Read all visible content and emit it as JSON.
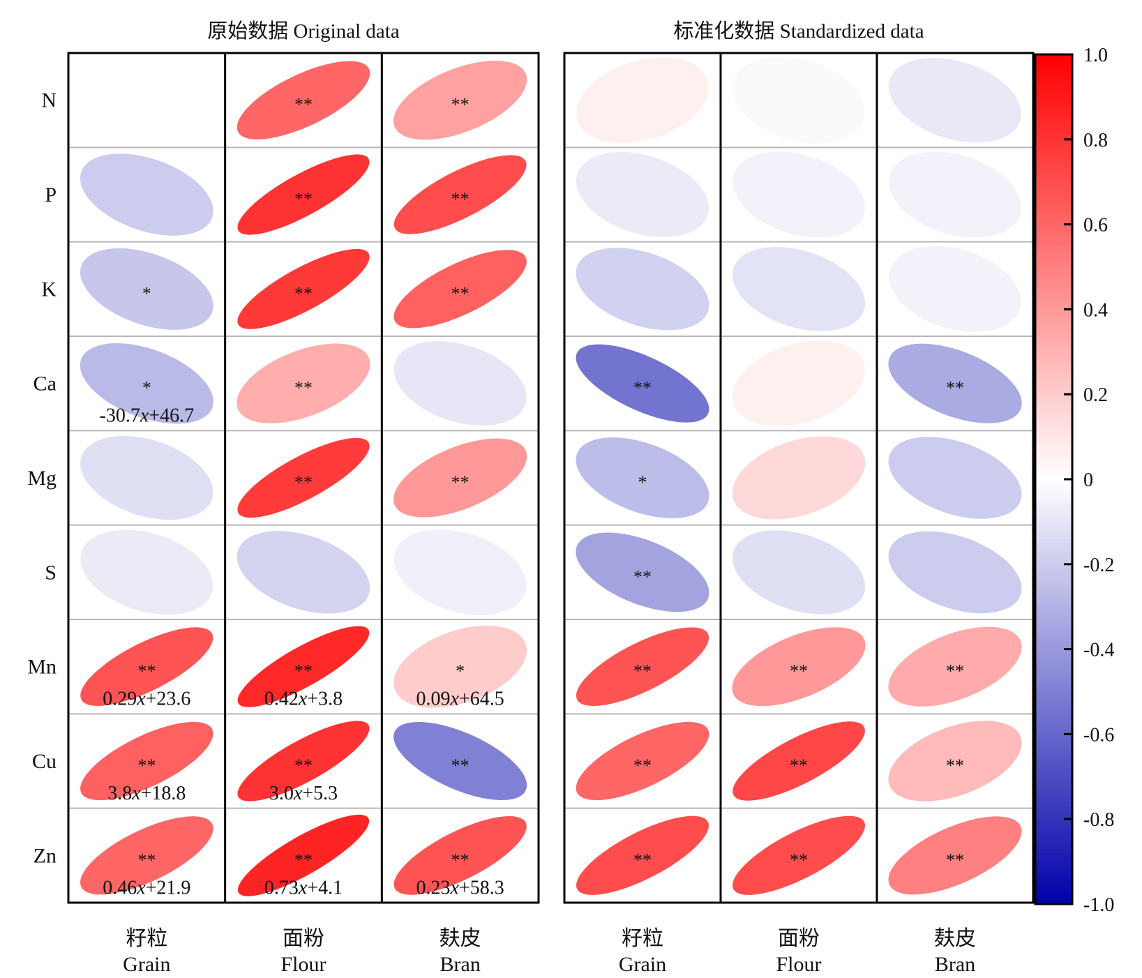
{
  "chart_data": {
    "type": "heatmap",
    "rows": [
      "N",
      "P",
      "K",
      "Ca",
      "Mg",
      "S",
      "Mn",
      "Cu",
      "Zn"
    ],
    "columns": [
      {
        "zh": "籽粒",
        "en": "Grain"
      },
      {
        "zh": "面粉",
        "en": "Flour"
      },
      {
        "zh": "麸皮",
        "en": "Bran"
      }
    ],
    "colorbar": {
      "min": -1.0,
      "max": 1.0,
      "ticks": [
        "1.0",
        "0.8",
        "0.6",
        "0.4",
        "0.2",
        "0",
        "-0.2",
        "-0.4",
        "-0.6",
        "-0.8",
        "-1.0"
      ],
      "colors": {
        "negative": "#0000aa",
        "zero": "#ffffff",
        "positive": "#ff0000"
      }
    },
    "panels": [
      {
        "title": "原始数据  Original data",
        "cells": [
          [
            {
              "r": 0,
              "sig": "",
              "eq": "",
              "eq_var": "",
              "eq_rest": ""
            },
            {
              "r": 0.6,
              "sig": "**",
              "eq": "",
              "eq_var": "",
              "eq_rest": ""
            },
            {
              "r": 0.37,
              "sig": "**",
              "eq": "",
              "eq_var": "",
              "eq_rest": ""
            }
          ],
          [
            {
              "r": -0.2,
              "sig": "",
              "eq": "",
              "eq_var": "",
              "eq_rest": ""
            },
            {
              "r": 0.8,
              "sig": "**",
              "eq": "",
              "eq_var": "",
              "eq_rest": ""
            },
            {
              "r": 0.7,
              "sig": "**",
              "eq": "",
              "eq_var": "",
              "eq_rest": ""
            }
          ],
          [
            {
              "r": -0.22,
              "sig": "*",
              "eq": "",
              "eq_var": "",
              "eq_rest": ""
            },
            {
              "r": 0.78,
              "sig": "**",
              "eq": "",
              "eq_var": "",
              "eq_rest": ""
            },
            {
              "r": 0.62,
              "sig": "**",
              "eq": "",
              "eq_var": "",
              "eq_rest": ""
            }
          ],
          [
            {
              "r": -0.27,
              "sig": "*",
              "eq": "-30.7",
              "eq_var": "x",
              "eq_rest": "+46.7"
            },
            {
              "r": 0.32,
              "sig": "**",
              "eq": "",
              "eq_var": "",
              "eq_rest": ""
            },
            {
              "r": -0.1,
              "sig": "",
              "eq": "",
              "eq_var": "",
              "eq_rest": ""
            }
          ],
          [
            {
              "r": -0.12,
              "sig": "",
              "eq": "",
              "eq_var": "",
              "eq_rest": ""
            },
            {
              "r": 0.77,
              "sig": "**",
              "eq": "",
              "eq_var": "",
              "eq_rest": ""
            },
            {
              "r": 0.4,
              "sig": "**",
              "eq": "",
              "eq_var": "",
              "eq_rest": ""
            }
          ],
          [
            {
              "r": -0.08,
              "sig": "",
              "eq": "",
              "eq_var": "",
              "eq_rest": ""
            },
            {
              "r": -0.17,
              "sig": "",
              "eq": "",
              "eq_var": "",
              "eq_rest": ""
            },
            {
              "r": -0.06,
              "sig": "",
              "eq": "",
              "eq_var": "",
              "eq_rest": ""
            }
          ],
          [
            {
              "r": 0.67,
              "sig": "**",
              "eq": "0.29",
              "eq_var": "x",
              "eq_rest": "+23.6"
            },
            {
              "r": 0.84,
              "sig": "**",
              "eq": "0.42",
              "eq_var": "x",
              "eq_rest": "+3.8"
            },
            {
              "r": 0.2,
              "sig": "*",
              "eq": "0.09",
              "eq_var": "x",
              "eq_rest": "+64.5"
            }
          ],
          [
            {
              "r": 0.62,
              "sig": "**",
              "eq": "3.8",
              "eq_var": "x",
              "eq_rest": "+18.8"
            },
            {
              "r": 0.8,
              "sig": "**",
              "eq": "3.0",
              "eq_var": "x",
              "eq_rest": "+5.3"
            },
            {
              "r": -0.5,
              "sig": "**",
              "eq": "",
              "eq_var": "",
              "eq_rest": ""
            }
          ],
          [
            {
              "r": 0.6,
              "sig": "**",
              "eq": "0.46",
              "eq_var": "x",
              "eq_rest": "+21.9"
            },
            {
              "r": 0.86,
              "sig": "**",
              "eq": "0.73",
              "eq_var": "x",
              "eq_rest": "+4.1"
            },
            {
              "r": 0.67,
              "sig": "**",
              "eq": "0.23",
              "eq_var": "x",
              "eq_rest": "+58.3"
            }
          ]
        ]
      },
      {
        "title": "标准化数据  Standardized data",
        "cells": [
          [
            {
              "r": 0.06,
              "sig": "",
              "eq": "",
              "eq_var": "",
              "eq_rest": ""
            },
            {
              "r": -0.02,
              "sig": "",
              "eq": "",
              "eq_var": "",
              "eq_rest": ""
            },
            {
              "r": -0.09,
              "sig": "",
              "eq": "",
              "eq_var": "",
              "eq_rest": ""
            }
          ],
          [
            {
              "r": -0.08,
              "sig": "",
              "eq": "",
              "eq_var": "",
              "eq_rest": ""
            },
            {
              "r": -0.05,
              "sig": "",
              "eq": "",
              "eq_var": "",
              "eq_rest": ""
            },
            {
              "r": -0.05,
              "sig": "",
              "eq": "",
              "eq_var": "",
              "eq_rest": ""
            }
          ],
          [
            {
              "r": -0.18,
              "sig": "",
              "eq": "",
              "eq_var": "",
              "eq_rest": ""
            },
            {
              "r": -0.11,
              "sig": "",
              "eq": "",
              "eq_var": "",
              "eq_rest": ""
            },
            {
              "r": -0.05,
              "sig": "",
              "eq": "",
              "eq_var": "",
              "eq_rest": ""
            }
          ],
          [
            {
              "r": -0.55,
              "sig": "**",
              "eq": "",
              "eq_var": "",
              "eq_rest": ""
            },
            {
              "r": 0.06,
              "sig": "",
              "eq": "",
              "eq_var": "",
              "eq_rest": ""
            },
            {
              "r": -0.33,
              "sig": "**",
              "eq": "",
              "eq_var": "",
              "eq_rest": ""
            }
          ],
          [
            {
              "r": -0.26,
              "sig": "*",
              "eq": "",
              "eq_var": "",
              "eq_rest": ""
            },
            {
              "r": 0.15,
              "sig": "",
              "eq": "",
              "eq_var": "",
              "eq_rest": ""
            },
            {
              "r": -0.2,
              "sig": "",
              "eq": "",
              "eq_var": "",
              "eq_rest": ""
            }
          ],
          [
            {
              "r": -0.36,
              "sig": "**",
              "eq": "",
              "eq_var": "",
              "eq_rest": ""
            },
            {
              "r": -0.12,
              "sig": "",
              "eq": "",
              "eq_var": "",
              "eq_rest": ""
            },
            {
              "r": -0.2,
              "sig": "",
              "eq": "",
              "eq_var": "",
              "eq_rest": ""
            }
          ],
          [
            {
              "r": 0.67,
              "sig": "**",
              "eq": "",
              "eq_var": "",
              "eq_rest": ""
            },
            {
              "r": 0.4,
              "sig": "**",
              "eq": "",
              "eq_var": "",
              "eq_rest": ""
            },
            {
              "r": 0.33,
              "sig": "**",
              "eq": "",
              "eq_var": "",
              "eq_rest": ""
            }
          ],
          [
            {
              "r": 0.6,
              "sig": "**",
              "eq": "",
              "eq_var": "",
              "eq_rest": ""
            },
            {
              "r": 0.72,
              "sig": "**",
              "eq": "",
              "eq_var": "",
              "eq_rest": ""
            },
            {
              "r": 0.27,
              "sig": "**",
              "eq": "",
              "eq_var": "",
              "eq_rest": ""
            }
          ],
          [
            {
              "r": 0.7,
              "sig": "**",
              "eq": "",
              "eq_var": "",
              "eq_rest": ""
            },
            {
              "r": 0.7,
              "sig": "**",
              "eq": "",
              "eq_var": "",
              "eq_rest": ""
            },
            {
              "r": 0.5,
              "sig": "**",
              "eq": "",
              "eq_var": "",
              "eq_rest": ""
            }
          ]
        ]
      }
    ]
  }
}
